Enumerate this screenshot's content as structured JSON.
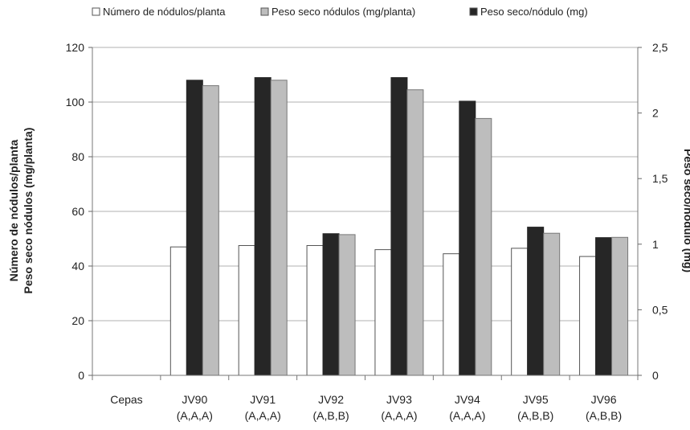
{
  "chart_data": {
    "type": "bar",
    "categories": [
      {
        "line1": "Cepas",
        "line2": ""
      },
      {
        "line1": "JV90",
        "line2": "(A,A,A)"
      },
      {
        "line1": "JV91",
        "line2": "(A,A,A)"
      },
      {
        "line1": "JV92",
        "line2": "(A,B,B)"
      },
      {
        "line1": "JV93",
        "line2": "(A,A,A)"
      },
      {
        "line1": "JV94",
        "line2": "(A,A,A)"
      },
      {
        "line1": "JV95",
        "line2": "(A,B,B)"
      },
      {
        "line1": "JV96",
        "line2": "(A,B,B)"
      }
    ],
    "series": [
      {
        "name": "Número de nódulos/planta",
        "axis": "left",
        "color": "#ffffff",
        "stroke": "#555555",
        "values": [
          null,
          47,
          47.5,
          47.5,
          46,
          44.5,
          46.5,
          43.5
        ]
      },
      {
        "name": "Peso seco/nódulo (mg)",
        "axis": "right",
        "color": "#262626",
        "stroke": "#262626",
        "values": [
          null,
          2.25,
          2.27,
          1.08,
          2.27,
          2.09,
          1.13,
          1.05
        ]
      },
      {
        "name": "Peso seco nódulos (mg/planta)",
        "axis": "left",
        "color": "#bdbdbd",
        "stroke": "#777777",
        "values": [
          null,
          106,
          108,
          51.5,
          104.5,
          94,
          52,
          50.5
        ]
      }
    ],
    "legend": [
      {
        "name": "Número de nódulos/planta",
        "color": "#ffffff"
      },
      {
        "name": "Peso seco nódulos (mg/planta)",
        "color": "#bdbdbd"
      },
      {
        "name": "Peso seco/nódulo (mg)",
        "color": "#262626"
      }
    ],
    "legend_position": "top",
    "left_axis": {
      "label_line1": "Número de nódulos/planta",
      "label_line2": "Peso seco nódulos (mg/planta)",
      "range": [
        0,
        120
      ],
      "ticks": [
        "0",
        "20",
        "40",
        "60",
        "80",
        "100",
        "120"
      ]
    },
    "right_axis": {
      "label": "Peso seco/nódulo (mg)",
      "range": [
        0,
        2.5
      ],
      "ticks": [
        "0",
        "0,5",
        "1",
        "1,5",
        "2",
        "2,5"
      ]
    },
    "grid": true
  }
}
